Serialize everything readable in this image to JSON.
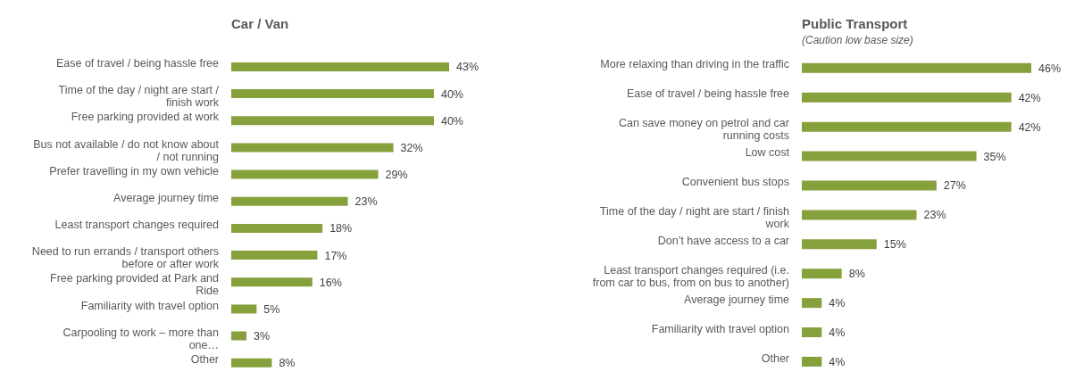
{
  "chart_data": [
    {
      "type": "bar",
      "orientation": "horizontal",
      "title": "Car / Van",
      "color": "#86a03c",
      "categories": [
        "Ease of travel / being hassle free",
        "Time of the day / night are start / finish work",
        "Free parking provided at work",
        "Bus not available / do not know about / not running",
        "Prefer travelling in my own vehicle",
        "Average journey time",
        "Least transport changes required",
        "Need to run errands /  transport others before or after work",
        "Free parking provided at Park and Ride",
        "Familiarity with travel option",
        "Carpooling to work – more than one…",
        "Other"
      ],
      "values": [
        43,
        40,
        40,
        32,
        29,
        23,
        18,
        17,
        16,
        5,
        3,
        8
      ],
      "value_labels": [
        "43%",
        "40%",
        "40%",
        "32%",
        "29%",
        "23%",
        "18%",
        "17%",
        "16%",
        "5%",
        "3%",
        "8%"
      ]
    },
    {
      "type": "bar",
      "orientation": "horizontal",
      "title": "Public Transport",
      "subtitle": "(Caution low base size)",
      "color": "#86a03c",
      "categories": [
        "More relaxing than driving in the traffic",
        "Ease of travel / being hassle free",
        "Can save money on petrol and car running costs",
        "Low cost",
        "Convenient bus stops",
        "Time of the day / night are start / finish work",
        "Don’t have access to a car",
        "Least transport changes required (i.e. from car to bus, from on bus to another)",
        "Average journey time",
        "Familiarity with travel option",
        "Other"
      ],
      "values": [
        46,
        42,
        42,
        35,
        27,
        23,
        15,
        8,
        4,
        4,
        4
      ],
      "value_labels": [
        "46%",
        "42%",
        "42%",
        "35%",
        "27%",
        "23%",
        "15%",
        "8%",
        "4%",
        "4%",
        "4%"
      ]
    }
  ]
}
